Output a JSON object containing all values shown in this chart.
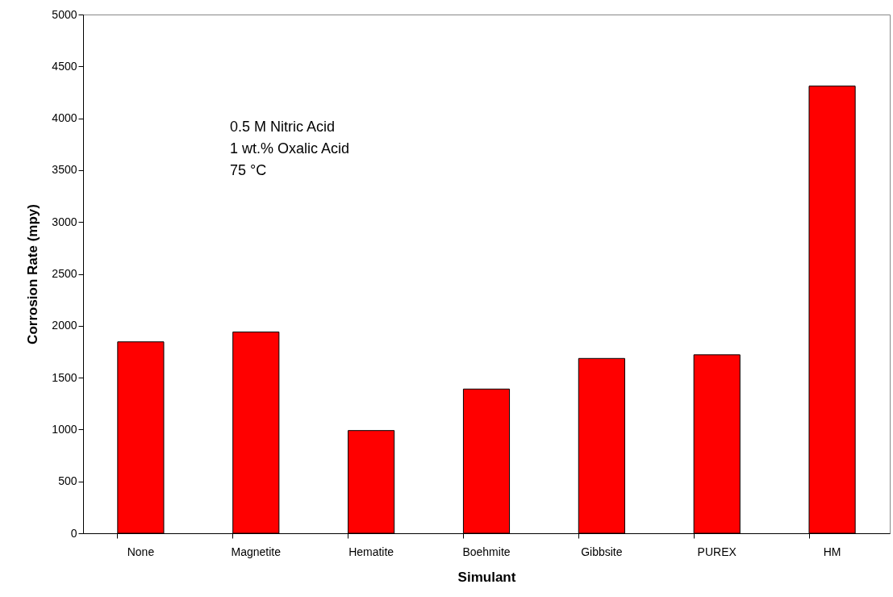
{
  "chart_data": {
    "type": "bar",
    "xlabel": "Simulant",
    "ylabel": "Corrosion Rate (mpy)",
    "categories": [
      "None",
      "Magnetite",
      "Hematite",
      "Boehmite",
      "Gibbsite",
      "PUREX",
      "HM"
    ],
    "values": [
      1845,
      1940,
      990,
      1390,
      1685,
      1720,
      4310
    ],
    "color": "#ff0000",
    "ylim": [
      0,
      5000
    ],
    "yticks": [
      0,
      500,
      1000,
      1500,
      2000,
      2500,
      3000,
      3500,
      4000,
      4500,
      5000
    ],
    "grid": false,
    "annotations": [
      "0.5 M Nitric Acid",
      "1 wt.% Oxalic Acid",
      "75 °C"
    ]
  }
}
